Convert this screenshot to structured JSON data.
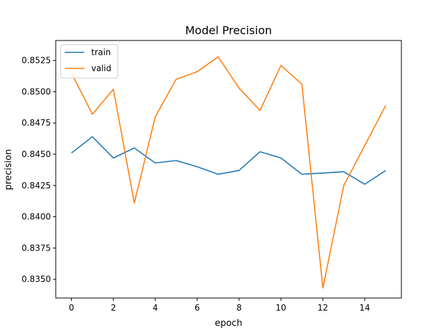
{
  "chart_data": {
    "type": "line",
    "title": "Model Precision",
    "xlabel": "epoch",
    "ylabel": "precision",
    "xlim": [
      -0.75,
      15.75
    ],
    "ylim": [
      0.8335,
      0.8541
    ],
    "xticks": [
      0,
      2,
      4,
      6,
      8,
      10,
      12,
      14
    ],
    "xtick_labels": [
      "0",
      "2",
      "4",
      "6",
      "8",
      "10",
      "12",
      "14"
    ],
    "yticks": [
      0.835,
      0.8375,
      0.84,
      0.8425,
      0.845,
      0.8475,
      0.85,
      0.8525
    ],
    "ytick_labels": [
      "0.8350",
      "0.8375",
      "0.8400",
      "0.8425",
      "0.8450",
      "0.8475",
      "0.8500",
      "0.8525"
    ],
    "grid": false,
    "legend_position": "top-left",
    "x": [
      0,
      1,
      2,
      3,
      4,
      5,
      6,
      7,
      8,
      9,
      10,
      11,
      12,
      13,
      14,
      15
    ],
    "series": [
      {
        "name": "train",
        "color": "#1f77b4",
        "values": [
          0.8451,
          0.8464,
          0.8447,
          0.8455,
          0.8443,
          0.8445,
          0.844,
          0.8434,
          0.8437,
          0.8452,
          0.8447,
          0.8434,
          0.8435,
          0.8436,
          0.8426,
          0.8437
        ]
      },
      {
        "name": "valid",
        "color": "#ff7f0e",
        "values": [
          0.8515,
          0.8482,
          0.8502,
          0.8411,
          0.848,
          0.851,
          0.8516,
          0.8528,
          0.8503,
          0.8485,
          0.8521,
          0.8506,
          0.8343,
          0.8425,
          0.8457,
          0.8489
        ]
      }
    ]
  }
}
